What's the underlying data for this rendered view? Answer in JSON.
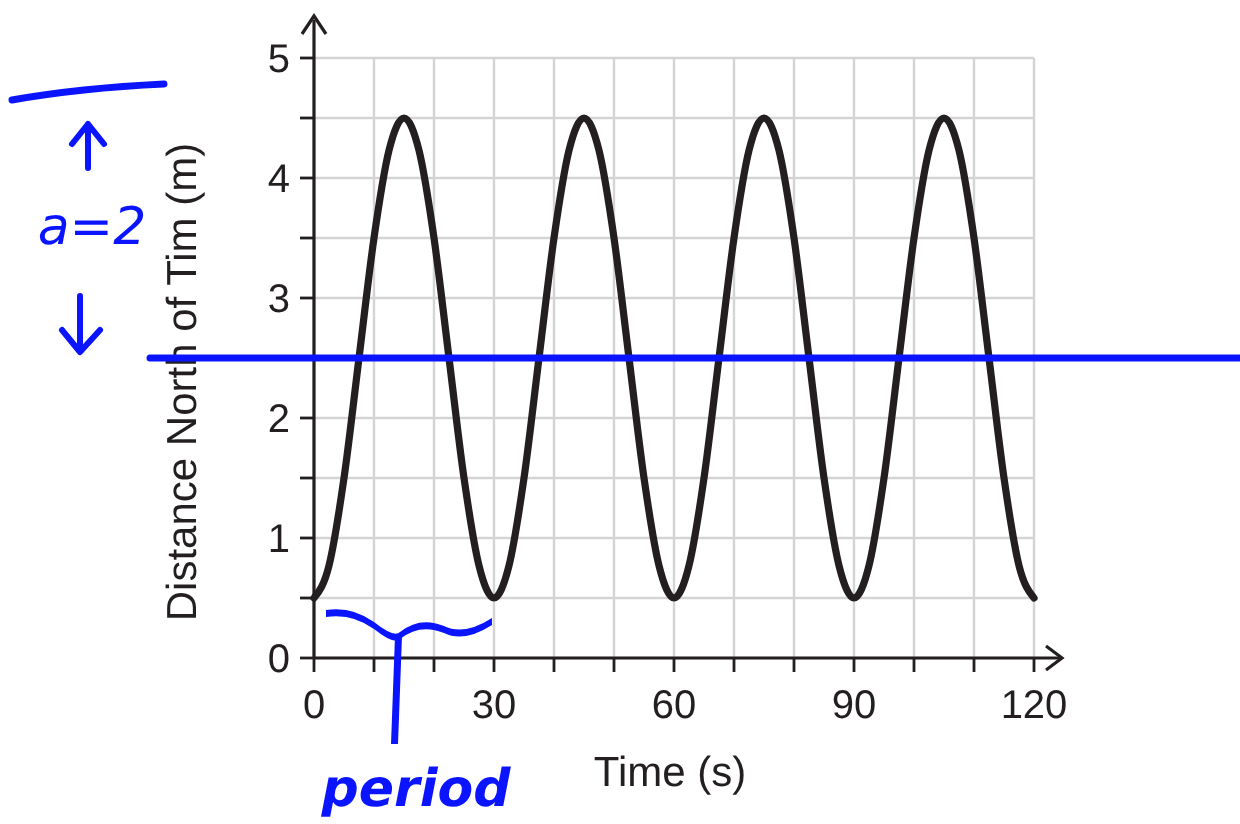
{
  "chart_data": {
    "type": "line",
    "xlabel": "Time (s)",
    "ylabel": "Distance North of Tim (m)",
    "x": [
      0,
      2.5,
      5,
      7.5,
      10,
      12.5,
      15,
      17.5,
      20,
      22.5,
      25,
      27.5,
      30,
      32.5,
      35,
      37.5,
      40,
      42.5,
      45,
      47.5,
      50,
      52.5,
      55,
      57.5,
      60,
      62.5,
      65,
      67.5,
      70,
      72.5,
      75,
      77.5,
      80,
      82.5,
      85,
      87.5,
      90,
      92.5,
      95,
      97.5,
      100,
      102.5,
      105,
      107.5,
      110,
      112.5,
      115,
      117.5,
      120
    ],
    "series": [
      {
        "color": "#231f20",
        "values": [
          0.5,
          0.77,
          1.5,
          2.5,
          3.5,
          4.23,
          4.5,
          4.23,
          3.5,
          2.5,
          1.5,
          0.77,
          0.5,
          0.77,
          1.5,
          2.5,
          3.5,
          4.23,
          4.5,
          4.23,
          3.5,
          2.5,
          1.5,
          0.77,
          0.5,
          0.77,
          1.5,
          2.5,
          3.5,
          4.23,
          4.5,
          4.23,
          3.5,
          2.5,
          1.5,
          0.77,
          0.5,
          0.77,
          1.5,
          2.5,
          3.5,
          4.23,
          4.5,
          4.23,
          3.5,
          2.5,
          1.5,
          0.77,
          0.5
        ]
      }
    ],
    "xlim": [
      0,
      120
    ],
    "ylim": [
      0,
      5
    ],
    "xticks": [
      0,
      {
        "value": 10,
        "label": null
      },
      {
        "value": 20,
        "label": null
      },
      30,
      {
        "value": 40,
        "label": null
      },
      {
        "value": 50,
        "label": null
      },
      60,
      {
        "value": 70,
        "label": null
      },
      {
        "value": 80,
        "label": null
      },
      90,
      {
        "value": 100,
        "label": null
      },
      {
        "value": 110,
        "label": null
      },
      120
    ],
    "yticks": [
      0,
      {
        "value": 0.5,
        "label": null
      },
      1,
      {
        "value": 1.5,
        "label": null
      },
      2,
      {
        "value": 2.5,
        "label": null
      },
      3,
      {
        "value": 3.5,
        "label": null
      },
      4,
      {
        "value": 4.5,
        "label": null
      },
      5
    ],
    "grid": true,
    "marker": "none",
    "line_style": "solid",
    "ref_lines": [
      {
        "axis": "y",
        "value": 2.5,
        "color": "#0a14ff"
      }
    ],
    "annotations": [
      "a=2",
      "period"
    ]
  }
}
